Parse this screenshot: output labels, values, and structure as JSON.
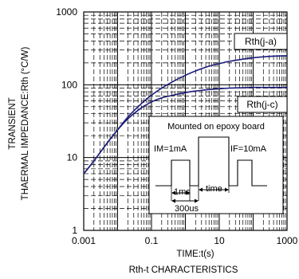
{
  "chart_data": {
    "type": "line",
    "title": "",
    "xlabel": "TIME:t(s)",
    "ylabel_lines": [
      "TRANSIENT",
      "THAERMAL IMPEDANCE:Rth (°C/W)"
    ],
    "caption": "Rth-t CHARACTERISTICS",
    "x_scale": "log",
    "y_scale": "log",
    "xlim": [
      0.001,
      1000
    ],
    "ylim": [
      1,
      1000
    ],
    "x_ticks": [
      {
        "value": 0.001,
        "label": "0.001"
      },
      {
        "value": 0.1,
        "label": "0.1"
      },
      {
        "value": 10,
        "label": "10"
      },
      {
        "value": 1000,
        "label": "1000"
      }
    ],
    "y_ticks": [
      {
        "value": 1,
        "label": "1"
      },
      {
        "value": 10,
        "label": "10"
      },
      {
        "value": 100,
        "label": "100"
      },
      {
        "value": 1000,
        "label": "1000"
      }
    ],
    "grid": true,
    "line_color": "#1c1c7a",
    "series": [
      {
        "name": "Rth(j-a)",
        "x": [
          0.001,
          0.002,
          0.005,
          0.01,
          0.02,
          0.05,
          0.1,
          0.2,
          0.5,
          1,
          2,
          5,
          10,
          20,
          50,
          100,
          200,
          500,
          1000
        ],
        "y": [
          6,
          9,
          16,
          24,
          36,
          55,
          72,
          90,
          115,
          135,
          155,
          180,
          195,
          210,
          225,
          235,
          242,
          248,
          250
        ]
      },
      {
        "name": "Rth(j-c)",
        "x": [
          0.001,
          0.002,
          0.005,
          0.01,
          0.02,
          0.05,
          0.1,
          0.2,
          0.5,
          1,
          2,
          5,
          10,
          20,
          50,
          100,
          200,
          500,
          1000
        ],
        "y": [
          6,
          9,
          16,
          24,
          34,
          48,
          58,
          66,
          73,
          78,
          82,
          86,
          88,
          90,
          91,
          92,
          92,
          92,
          92
        ]
      }
    ],
    "inset": {
      "title": "Mounted on epoxy  board",
      "im_label": "IM=1mA",
      "if_label": "IF=10mA",
      "dur_1_label": "1ms",
      "time_label": "time",
      "dur_300_label": "300us"
    }
  }
}
